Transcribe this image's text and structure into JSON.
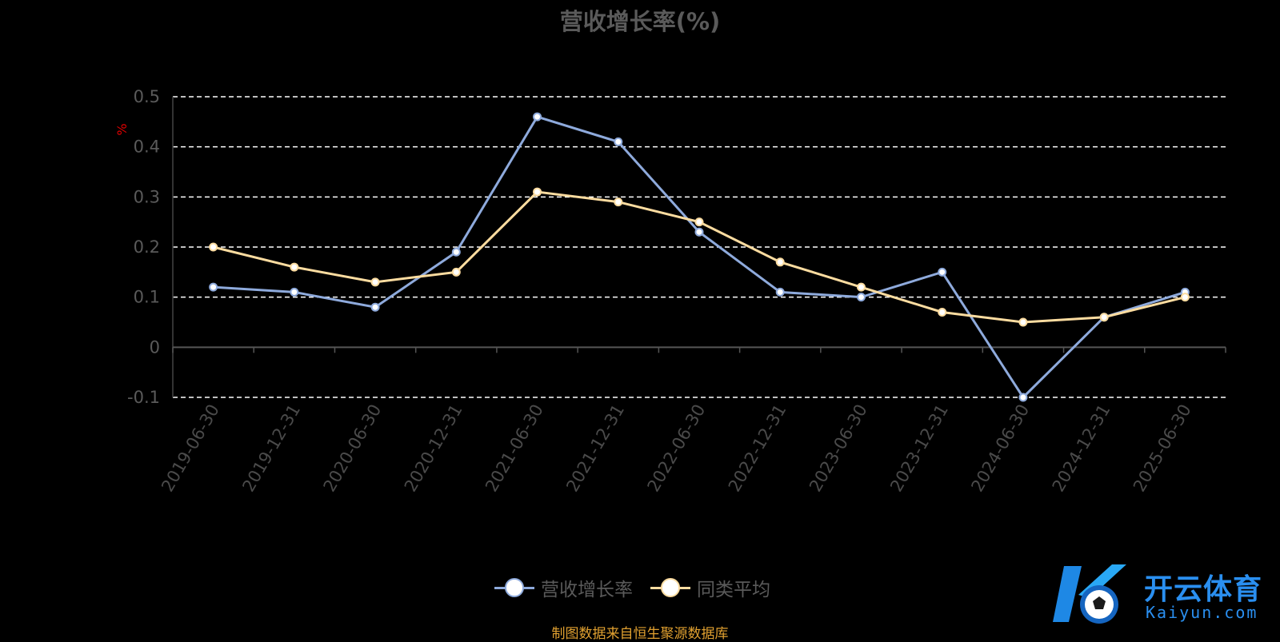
{
  "chart_data": {
    "type": "line",
    "title": "营收增长率(%)",
    "ylabel": "%",
    "ylim": [
      -0.1,
      0.5
    ],
    "yticks": [
      "0.5",
      "0.4",
      "0.3",
      "0.2",
      "0.1",
      "0",
      "-0.1"
    ],
    "grid": true,
    "legend_position": "bottom",
    "categories": [
      "2019-06-30",
      "2019-12-31",
      "2020-06-30",
      "2020-12-31",
      "2021-06-30",
      "2021-12-31",
      "2022-06-30",
      "2022-12-31",
      "2023-06-30",
      "2023-12-31",
      "2024-06-30",
      "2024-12-31",
      "2025-06-30"
    ],
    "series": [
      {
        "name": "营收增长率",
        "color": "#8eaadc",
        "values": [
          0.12,
          0.11,
          0.08,
          0.19,
          0.46,
          0.41,
          0.23,
          0.11,
          0.1,
          0.15,
          -0.1,
          0.06,
          0.11
        ]
      },
      {
        "name": "同类平均",
        "color": "#fcdca0",
        "values": [
          0.2,
          0.16,
          0.13,
          0.15,
          0.31,
          0.29,
          0.25,
          0.17,
          0.12,
          0.07,
          0.05,
          0.06,
          0.1
        ]
      }
    ]
  },
  "source_note": "制图数据来自恒生聚源数据库",
  "watermark": {
    "brand_cn": "开云体育",
    "brand_en": "Kaiyun.com"
  }
}
